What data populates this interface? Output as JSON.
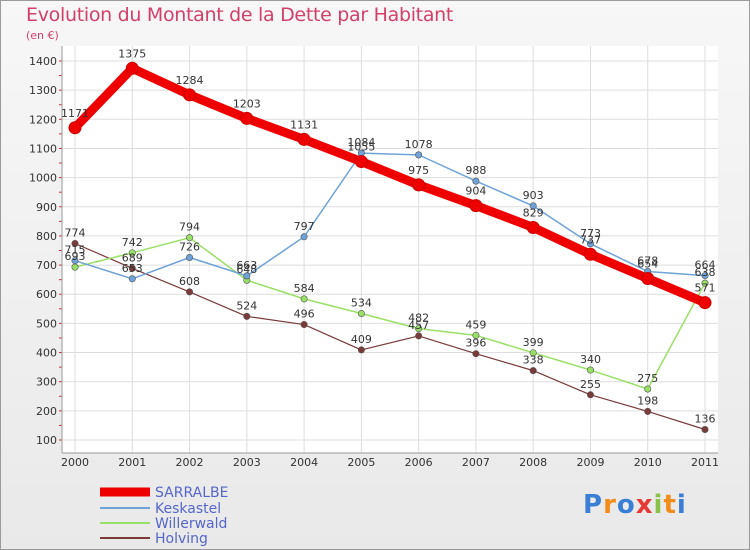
{
  "title": "Evolution du Montant de la Dette par Habitant",
  "subtitle": "(en €)",
  "logo": {
    "letters": [
      "P",
      "r",
      "o",
      "x",
      "i",
      "t",
      "i"
    ],
    "colors": [
      "#3a7fd5",
      "#f28c1a",
      "#3a7fd5",
      "#e53935",
      "#8bc34a",
      "#f28c1a",
      "#3a7fd5"
    ]
  },
  "chart_data": {
    "type": "line",
    "title": "Evolution du Montant de la Dette par Habitant",
    "ylabel": "(en €)",
    "xlabel": "",
    "ylim": [
      100,
      1400
    ],
    "yticks": [
      100,
      200,
      300,
      400,
      500,
      600,
      700,
      800,
      900,
      1000,
      1100,
      1200,
      1300,
      1400
    ],
    "x": [
      "2000",
      "2001",
      "2002",
      "2003",
      "2004",
      "2005",
      "2006",
      "2007",
      "2008",
      "2009",
      "2010",
      "2011"
    ],
    "grid": true,
    "legend": "bottom-left",
    "series": [
      {
        "name": "SARRALBE",
        "color": "#ee0000",
        "width": 9,
        "values": [
          1171,
          1375,
          1284,
          1203,
          1131,
          1055,
          975,
          904,
          829,
          737,
          654,
          571
        ],
        "labels": [
          "1171",
          "1375",
          "1284",
          "1203",
          "1131",
          "1055",
          "975",
          "904",
          "829",
          "737",
          "654",
          "571"
        ]
      },
      {
        "name": "Keskastel",
        "color": "#6ea3d8",
        "width": 1.5,
        "values": [
          715,
          653,
          726,
          663,
          797,
          1084,
          1078,
          988,
          903,
          773,
          678,
          664
        ],
        "labels": [
          "715",
          "653",
          "726",
          "663",
          "797",
          "1084",
          "1078",
          "988",
          "903",
          "773",
          "678",
          "664"
        ]
      },
      {
        "name": "Willerwald",
        "color": "#99e066",
        "width": 1.5,
        "values": [
          693,
          742,
          794,
          648,
          584,
          534,
          482,
          459,
          399,
          340,
          275,
          638
        ],
        "labels": [
          "693",
          "742",
          "794",
          "648",
          "584",
          "534",
          "482",
          "459",
          "399",
          "340",
          "275",
          "638"
        ]
      },
      {
        "name": "Holving",
        "color": "#7a3a3a",
        "width": 1.2,
        "values": [
          774,
          689,
          608,
          524,
          496,
          409,
          457,
          396,
          338,
          255,
          198,
          136
        ],
        "labels": [
          "774",
          "689",
          "608",
          "524",
          "496",
          "409",
          "457",
          "396",
          "338",
          "255",
          "198",
          "136"
        ]
      }
    ]
  }
}
